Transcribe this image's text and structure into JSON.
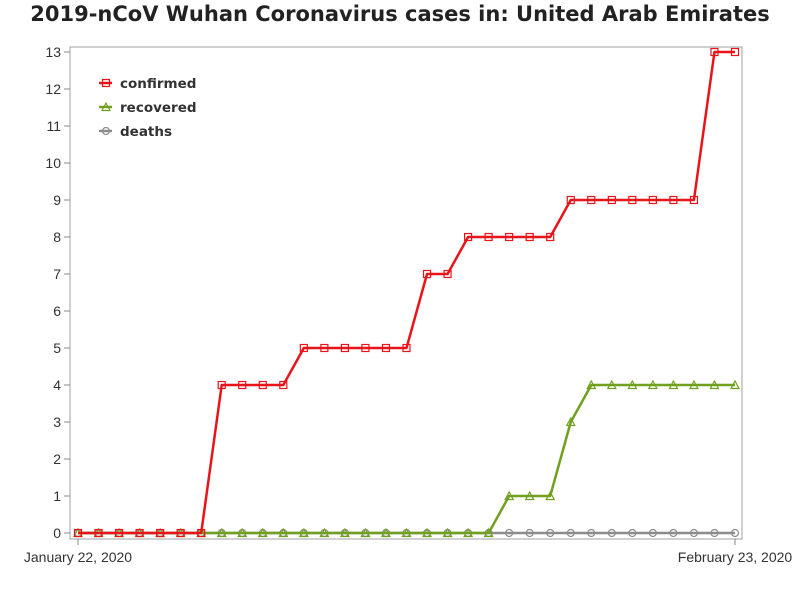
{
  "chart_data": {
    "type": "line",
    "title": "2019-nCoV Wuhan Coronavirus cases in: United Arab Emirates",
    "xlabel": "",
    "ylabel": "",
    "x": [
      "2020-01-22",
      "2020-01-23",
      "2020-01-24",
      "2020-01-25",
      "2020-01-26",
      "2020-01-27",
      "2020-01-28",
      "2020-01-29",
      "2020-01-30",
      "2020-01-31",
      "2020-02-01",
      "2020-02-02",
      "2020-02-03",
      "2020-02-04",
      "2020-02-05",
      "2020-02-06",
      "2020-02-07",
      "2020-02-08",
      "2020-02-09",
      "2020-02-10",
      "2020-02-11",
      "2020-02-12",
      "2020-02-13",
      "2020-02-14",
      "2020-02-15",
      "2020-02-16",
      "2020-02-17",
      "2020-02-18",
      "2020-02-19",
      "2020-02-20",
      "2020-02-21",
      "2020-02-22",
      "2020-02-23"
    ],
    "x_tick_labels": [
      "January 22, 2020",
      "February 23, 2020"
    ],
    "ylim": [
      0,
      13
    ],
    "y_ticks": [
      0,
      1,
      2,
      3,
      4,
      5,
      6,
      7,
      8,
      9,
      10,
      11,
      12,
      13
    ],
    "grid": false,
    "legend_position": "top-left",
    "series": [
      {
        "name": "confirmed",
        "color": "#e8141a",
        "marker": "square",
        "values": [
          0,
          0,
          0,
          0,
          0,
          0,
          0,
          4,
          4,
          4,
          4,
          5,
          5,
          5,
          5,
          5,
          5,
          7,
          7,
          8,
          8,
          8,
          8,
          8,
          9,
          9,
          9,
          9,
          9,
          9,
          9,
          13,
          13
        ]
      },
      {
        "name": "recovered",
        "color": "#6fa11e",
        "marker": "triangle",
        "values": [
          0,
          0,
          0,
          0,
          0,
          0,
          0,
          0,
          0,
          0,
          0,
          0,
          0,
          0,
          0,
          0,
          0,
          0,
          0,
          0,
          0,
          1,
          1,
          1,
          3,
          4,
          4,
          4,
          4,
          4,
          4,
          4,
          4
        ]
      },
      {
        "name": "deaths",
        "color": "#8c8c8c",
        "marker": "circle",
        "values": [
          0,
          0,
          0,
          0,
          0,
          0,
          0,
          0,
          0,
          0,
          0,
          0,
          0,
          0,
          0,
          0,
          0,
          0,
          0,
          0,
          0,
          0,
          0,
          0,
          0,
          0,
          0,
          0,
          0,
          0,
          0,
          0,
          0
        ]
      }
    ]
  }
}
